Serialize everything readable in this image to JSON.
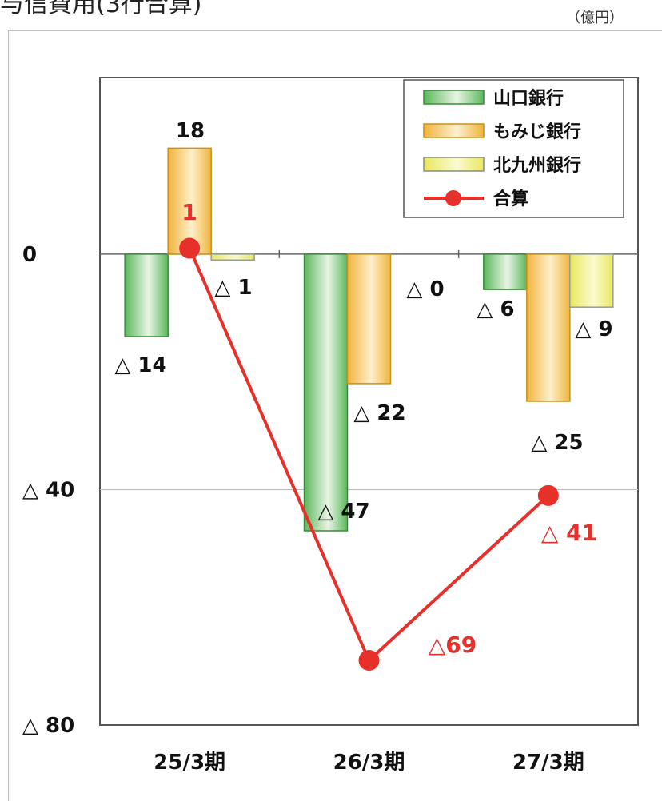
{
  "title": "与信費用(3行合算)",
  "unit": "（億円）",
  "chart_data": {
    "type": "bar",
    "categories": [
      "25/3期",
      "26/3期",
      "27/3期"
    ],
    "ylim": [
      -80,
      30
    ],
    "yticks": [
      {
        "value": 0,
        "label": "0"
      },
      {
        "value": -40,
        "label": "△ 40"
      },
      {
        "value": -80,
        "label": "△ 80"
      }
    ],
    "grid": true,
    "legend_position": "top-right",
    "series": [
      {
        "name": "山口銀行",
        "values": [
          -14,
          -47,
          -6
        ],
        "labels": [
          "△ 14",
          "△ 47",
          "△ 6"
        ]
      },
      {
        "name": "もみじ銀行",
        "values": [
          18,
          -22,
          -25
        ],
        "labels": [
          "18",
          "△ 22",
          "△ 25"
        ]
      },
      {
        "name": "北九州銀行",
        "values": [
          -1,
          0,
          -9
        ],
        "labels": [
          "△ 1",
          "△ 0",
          "△ 9"
        ]
      }
    ],
    "line": {
      "name": "合算",
      "values": [
        1,
        -69,
        -41
      ],
      "labels": [
        "1",
        "△69",
        "△ 41"
      ]
    }
  },
  "colors": {
    "yamaguchi": "#5cb85c",
    "momiji": "#f0b43c",
    "kitakyushu": "#e8e860",
    "total": "#e8302a"
  }
}
